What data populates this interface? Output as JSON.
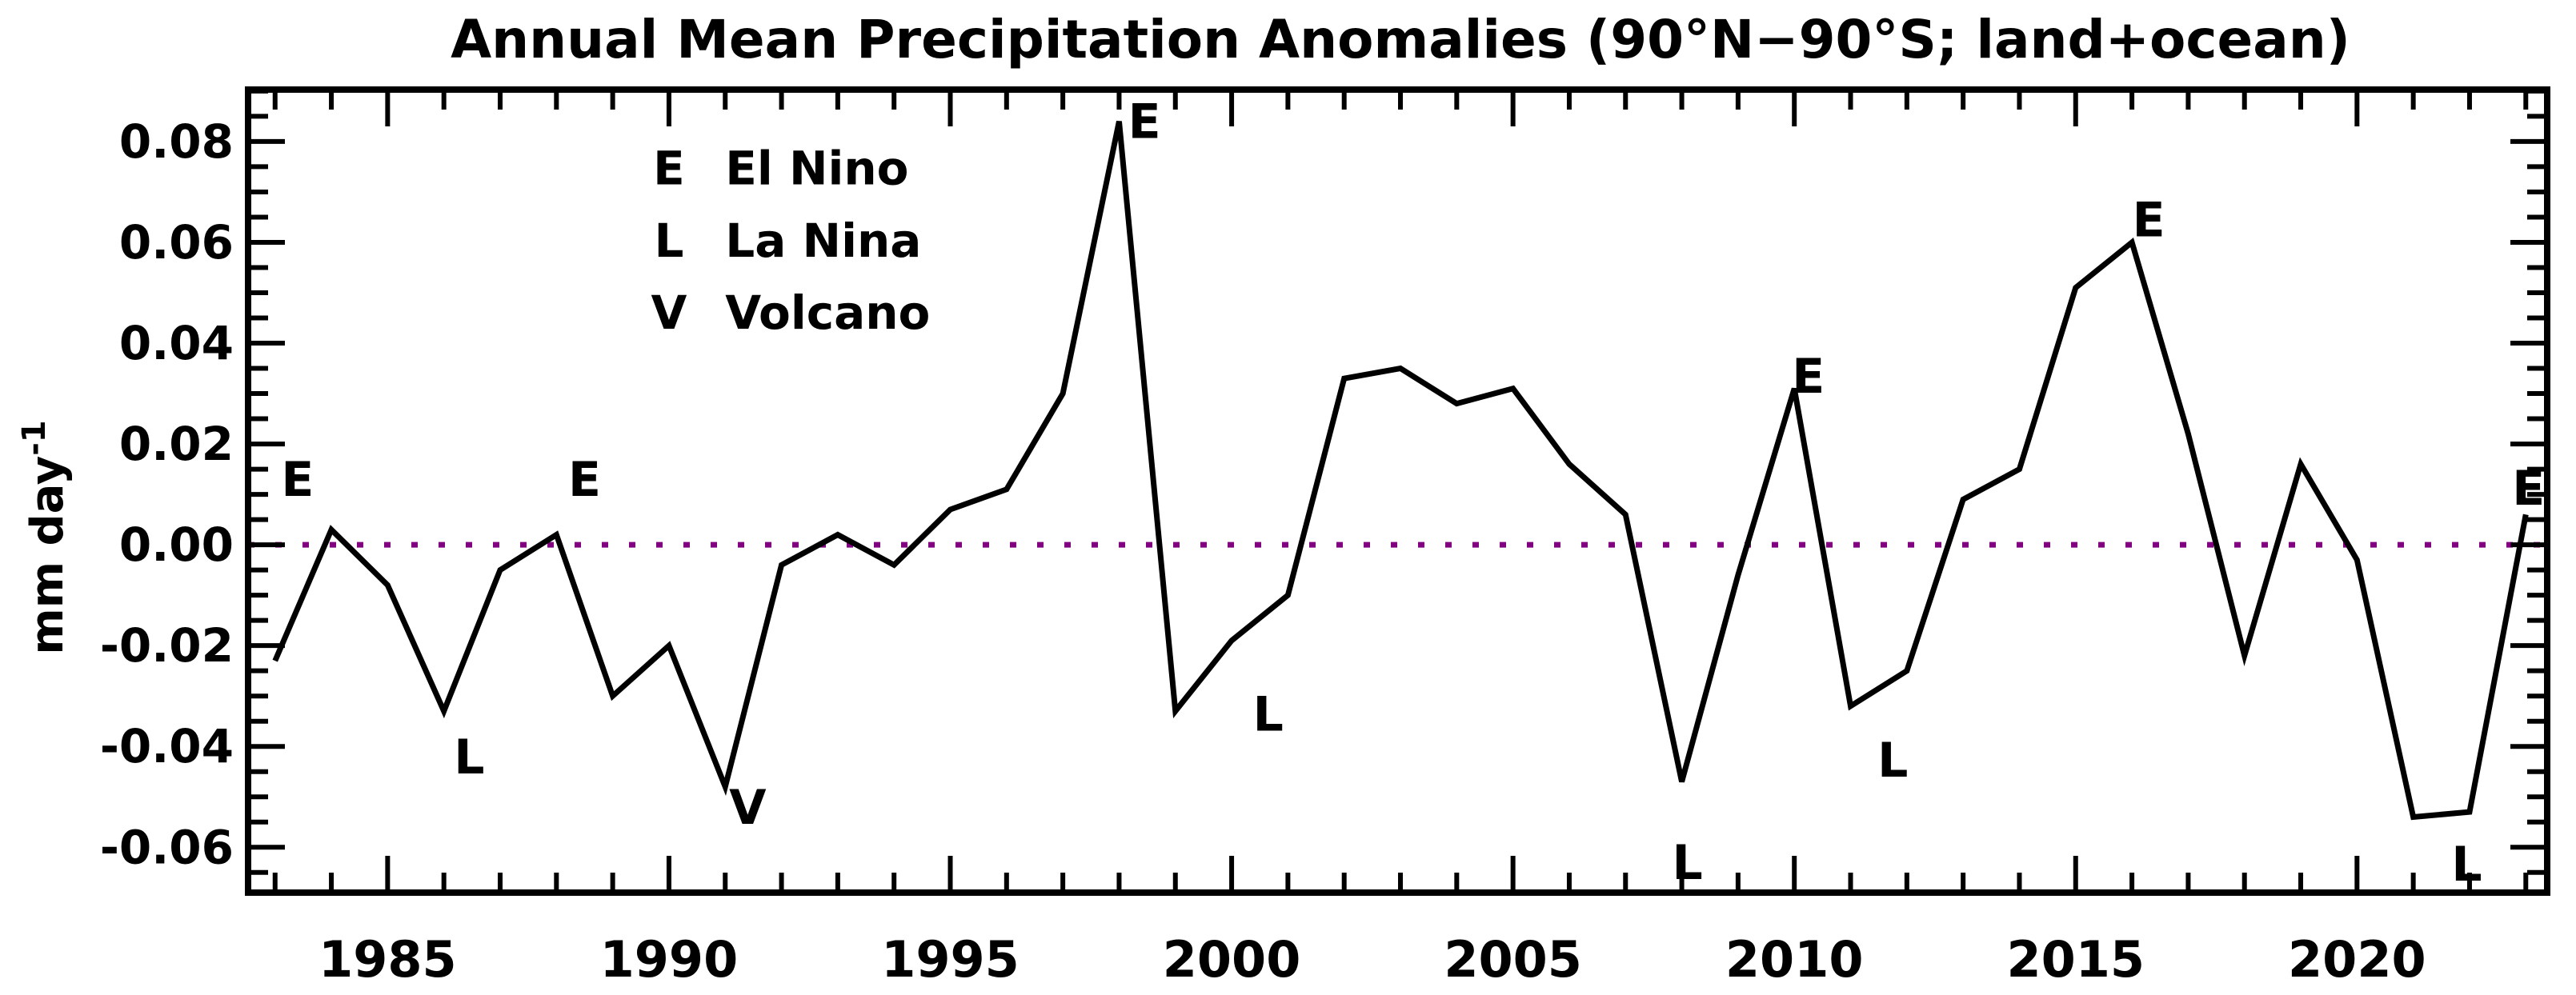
{
  "title": "Annual Mean Precipitation Anomalies (90°N−90°S; land+ocean)",
  "y_axis": {
    "title_main": "mm day",
    "title_exponent": "-1",
    "range": [
      -0.069,
      0.0903
    ],
    "major_ticks": [
      {
        "value": 0.08,
        "label": "0.08"
      },
      {
        "value": 0.06,
        "label": "0.06"
      },
      {
        "value": 0.04,
        "label": "0.04"
      },
      {
        "value": 0.02,
        "label": "0.02"
      },
      {
        "value": 0.0,
        "label": "0.00"
      },
      {
        "value": -0.02,
        "label": "-0.02"
      },
      {
        "value": -0.04,
        "label": "-0.04"
      },
      {
        "value": -0.06,
        "label": "-0.06"
      }
    ],
    "minor_step": 0.005
  },
  "x_axis": {
    "range": [
      1982.52,
      2023.38
    ],
    "major_ticks": [
      {
        "value": 1985,
        "label": "1985"
      },
      {
        "value": 1990,
        "label": "1990"
      },
      {
        "value": 1995,
        "label": "1995"
      },
      {
        "value": 2000,
        "label": "2000"
      },
      {
        "value": 2005,
        "label": "2005"
      },
      {
        "value": 2010,
        "label": "2010"
      },
      {
        "value": 2015,
        "label": "2015"
      },
      {
        "value": 2020,
        "label": "2020"
      }
    ],
    "minor_step": 1
  },
  "zero_line": {
    "value": 0.0,
    "color": "#800080"
  },
  "line_color": "#000000",
  "colors": {
    "el_nino": "#ff0000",
    "la_nina": "#2222ff",
    "volcano": "#00dd00"
  },
  "legend": {
    "anchor_year": 1990.0,
    "label_year": 1991.0,
    "rows": [
      {
        "symbol": "E",
        "label": "El Nino",
        "color": "#ff0000",
        "level": 0.0748
      },
      {
        "symbol": "L",
        "label": "La Nina",
        "color": "#2222ff",
        "level": 0.0605
      },
      {
        "symbol": "V",
        "label": "Volcano",
        "color": "#00dd00",
        "level": 0.0462
      }
    ]
  },
  "markers": {
    "el_nino": {
      "symbol": "E",
      "points": [
        {
          "year": 1983.4,
          "level": 0.013
        },
        {
          "year": 1988.5,
          "level": 0.013
        },
        {
          "year": 1998.45,
          "level": 0.084
        },
        {
          "year": 2010.25,
          "level": 0.0335
        },
        {
          "year": 2016.3,
          "level": 0.0645
        },
        {
          "year": 2023.05,
          "level": 0.0113
        }
      ]
    },
    "la_nina": {
      "symbol": "L",
      "points": [
        {
          "year": 1986.45,
          "level": -0.042
        },
        {
          "year": 2000.65,
          "level": -0.0335
        },
        {
          "year": 2008.1,
          "level": -0.063
        },
        {
          "year": 2011.75,
          "level": -0.0427
        },
        {
          "year": 2021.95,
          "level": -0.0633
        }
      ]
    },
    "volcano": {
      "symbol": "V",
      "points": [
        {
          "year": 1991.4,
          "level": -0.052
        }
      ]
    }
  },
  "chart_data": {
    "type": "line",
    "title": "Annual Mean Precipitation Anomalies (90°N−90°S; land+ocean)",
    "xlabel": "",
    "ylabel": "mm day⁻¹",
    "xlim": [
      1982.5,
      2023.4
    ],
    "ylim": [
      -0.069,
      0.09
    ],
    "grid": false,
    "x": [
      1983,
      1984,
      1985,
      1986,
      1987,
      1988,
      1989,
      1990,
      1991,
      1992,
      1993,
      1994,
      1995,
      1996,
      1997,
      1998,
      1999,
      2000,
      2001,
      2002,
      2003,
      2004,
      2005,
      2006,
      2007,
      2008,
      2009,
      2010,
      2011,
      2012,
      2013,
      2014,
      2015,
      2016,
      2017,
      2018,
      2019,
      2020,
      2021,
      2022,
      2023
    ],
    "values": [
      -0.023,
      0.003,
      -0.008,
      -0.033,
      -0.005,
      0.002,
      -0.03,
      -0.02,
      -0.048,
      -0.004,
      0.002,
      -0.004,
      0.007,
      0.011,
      0.03,
      0.084,
      -0.033,
      -0.019,
      -0.01,
      0.033,
      0.035,
      0.028,
      0.031,
      0.016,
      0.006,
      -0.047,
      -0.006,
      0.031,
      -0.032,
      -0.025,
      0.009,
      0.015,
      0.051,
      0.06,
      0.022,
      -0.022,
      0.016,
      -0.003,
      -0.054,
      -0.053,
      0.006
    ],
    "annotations": {
      "E": "El Nino years (red)",
      "L": "La Nina years (blue)",
      "V": "Volcano (green)"
    }
  }
}
